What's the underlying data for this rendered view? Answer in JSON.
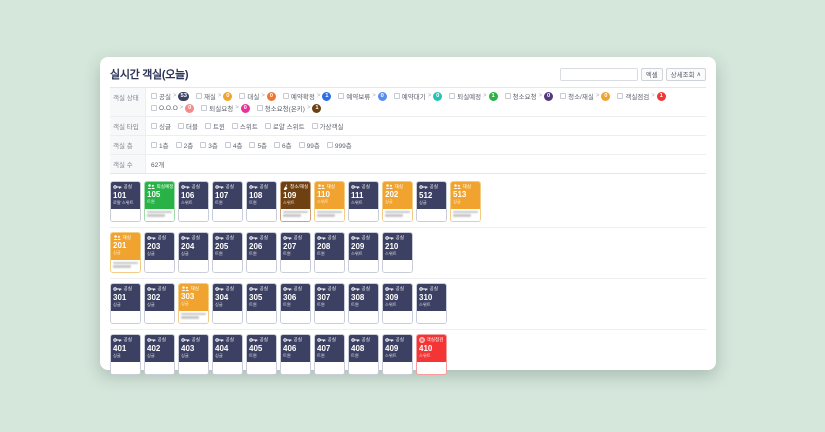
{
  "page": {
    "background": "#d5e6db",
    "panel_background": "#ffffff"
  },
  "header": {
    "title": "실시간 객실(오늘)",
    "search_value": "",
    "excel_button": "엑셀",
    "detail_button": "상세조회",
    "detail_chevron": "∧"
  },
  "filters": {
    "status": {
      "label": "객실 상태",
      "items": [
        {
          "label": "공실",
          "count": "53",
          "color": "#3c4163"
        },
        {
          "label": "재실",
          "count": "0",
          "color": "#f0a32e"
        },
        {
          "label": "대실",
          "count": "0",
          "color": "#f2762d"
        },
        {
          "label": "예약확정",
          "count": "1",
          "color": "#2e6de4"
        },
        {
          "label": "예약보류",
          "count": "0",
          "color": "#5a8dee"
        },
        {
          "label": "예약대기",
          "count": "0",
          "color": "#25c3b0"
        },
        {
          "label": "퇴실예정",
          "count": "1",
          "color": "#29b347"
        },
        {
          "label": "청소요청",
          "count": "0",
          "color": "#533a7d"
        },
        {
          "label": "청소/재실",
          "count": "0",
          "color": "#f0a32e"
        },
        {
          "label": "객실점검",
          "count": "1",
          "color": "#f43535"
        },
        {
          "label": "O.O.O",
          "count": "0",
          "color": "#f58a8a"
        },
        {
          "label": "퇴실요청",
          "count": "0",
          "color": "#ea2e9a"
        },
        {
          "label": "청소요청(온키)",
          "count": "1",
          "color": "#6e4012"
        }
      ]
    },
    "type": {
      "label": "객실 타입",
      "options": [
        "싱글",
        "더블",
        "트윈",
        "스위트",
        "로얄 스위트",
        "가상객실"
      ]
    },
    "floor": {
      "label": "객실 층",
      "options": [
        "1층",
        "2층",
        "3층",
        "4층",
        "5층",
        "6층",
        "99층",
        "999층"
      ]
    },
    "count": {
      "label": "객실 수",
      "value": "62개"
    }
  },
  "statuses": {
    "vacant": {
      "label": "공실",
      "color": "#3c4163",
      "border": "#c9cdd9",
      "icon": "key-icon"
    },
    "occupied": {
      "label": "재실",
      "color": "#f0a32e",
      "border": "#f3cd84",
      "icon": "people-icon"
    },
    "checkout-due": {
      "label": "퇴실예정",
      "color": "#29b347",
      "border": "#9fdcab",
      "icon": "people-icon"
    },
    "cleaning-occupied": {
      "label": "청소/재실",
      "color": "#6e4012",
      "border": "#c9a27e",
      "icon": "broom-icon"
    },
    "inspection": {
      "label": "객실점검",
      "color": "#f43535",
      "border": "#f59c9c",
      "icon": "gear-icon"
    }
  },
  "rooms": {
    "rows": [
      [
        {
          "number": "101",
          "status": "vacant",
          "type": "로얄 스위트",
          "blurred_info": false
        },
        {
          "number": "105",
          "status": "checkout-due",
          "type": "트윈",
          "blurred_info": true
        },
        {
          "number": "106",
          "status": "vacant",
          "type": "스위트",
          "blurred_info": false
        },
        {
          "number": "107",
          "status": "vacant",
          "type": "트윈",
          "blurred_info": false
        },
        {
          "number": "108",
          "status": "vacant",
          "type": "트윈",
          "blurred_info": false
        },
        {
          "number": "109",
          "status": "cleaning-occupied",
          "type": "스위트",
          "blurred_info": true
        },
        {
          "number": "110",
          "status": "occupied",
          "type": "스위트",
          "blurred_info": true
        },
        {
          "number": "111",
          "status": "vacant",
          "type": "스위트",
          "blurred_info": false
        },
        {
          "number": "202",
          "status": "occupied",
          "type": "싱글",
          "blurred_info": true
        },
        {
          "number": "512",
          "status": "vacant",
          "type": "싱글",
          "blurred_info": false
        },
        {
          "number": "513",
          "status": "occupied",
          "type": "싱글",
          "blurred_info": true
        }
      ],
      [
        {
          "number": "201",
          "status": "occupied",
          "type": "싱글",
          "blurred_info": true
        },
        {
          "number": "203",
          "status": "vacant",
          "type": "싱글",
          "blurred_info": false
        },
        {
          "number": "204",
          "status": "vacant",
          "type": "싱글",
          "blurred_info": false
        },
        {
          "number": "205",
          "status": "vacant",
          "type": "트윈",
          "blurred_info": false
        },
        {
          "number": "206",
          "status": "vacant",
          "type": "트윈",
          "blurred_info": false
        },
        {
          "number": "207",
          "status": "vacant",
          "type": "트윈",
          "blurred_info": false
        },
        {
          "number": "208",
          "status": "vacant",
          "type": "트윈",
          "blurred_info": false
        },
        {
          "number": "209",
          "status": "vacant",
          "type": "스위트",
          "blurred_info": false
        },
        {
          "number": "210",
          "status": "vacant",
          "type": "스위트",
          "blurred_info": false
        }
      ],
      [
        {
          "number": "301",
          "status": "vacant",
          "type": "싱글",
          "blurred_info": false
        },
        {
          "number": "302",
          "status": "vacant",
          "type": "싱글",
          "blurred_info": false
        },
        {
          "number": "303",
          "status": "occupied",
          "type": "싱글",
          "blurred_info": true
        },
        {
          "number": "304",
          "status": "vacant",
          "type": "싱글",
          "blurred_info": false
        },
        {
          "number": "305",
          "status": "vacant",
          "type": "트윈",
          "blurred_info": false
        },
        {
          "number": "306",
          "status": "vacant",
          "type": "트윈",
          "blurred_info": false
        },
        {
          "number": "307",
          "status": "vacant",
          "type": "트윈",
          "blurred_info": false
        },
        {
          "number": "308",
          "status": "vacant",
          "type": "트윈",
          "blurred_info": false
        },
        {
          "number": "309",
          "status": "vacant",
          "type": "스위트",
          "blurred_info": false
        },
        {
          "number": "310",
          "status": "vacant",
          "type": "스위트",
          "blurred_info": false
        }
      ],
      [
        {
          "number": "401",
          "status": "vacant",
          "type": "싱글",
          "blurred_info": false
        },
        {
          "number": "402",
          "status": "vacant",
          "type": "싱글",
          "blurred_info": false
        },
        {
          "number": "403",
          "status": "vacant",
          "type": "싱글",
          "blurred_info": false
        },
        {
          "number": "404",
          "status": "vacant",
          "type": "싱글",
          "blurred_info": false
        },
        {
          "number": "405",
          "status": "vacant",
          "type": "트윈",
          "blurred_info": false
        },
        {
          "number": "406",
          "status": "vacant",
          "type": "트윈",
          "blurred_info": false
        },
        {
          "number": "407",
          "status": "vacant",
          "type": "트윈",
          "blurred_info": false
        },
        {
          "number": "408",
          "status": "vacant",
          "type": "트윈",
          "blurred_info": false
        },
        {
          "number": "409",
          "status": "vacant",
          "type": "스위트",
          "blurred_info": false
        },
        {
          "number": "410",
          "status": "inspection",
          "type": "스위트",
          "blurred_info": false
        }
      ]
    ]
  }
}
